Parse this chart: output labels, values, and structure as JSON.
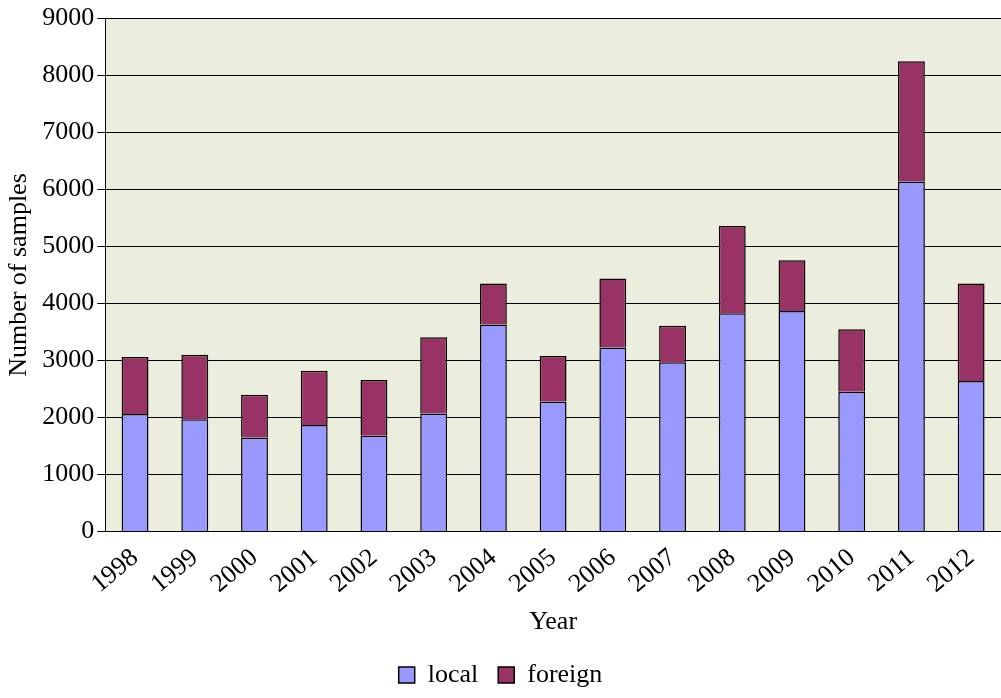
{
  "chart_data": {
    "type": "bar",
    "stacked": true,
    "xlabel": "Year",
    "ylabel": "Number of samples",
    "categories": [
      "1998",
      "1999",
      "2000",
      "2001",
      "2002",
      "2003",
      "2004",
      "2005",
      "2006",
      "2007",
      "2008",
      "2009",
      "2010",
      "2011",
      "2012"
    ],
    "series": [
      {
        "name": "local",
        "color": "#9999ff",
        "values": [
          2060,
          1970,
          1650,
          1870,
          1680,
          2070,
          3630,
          2280,
          3230,
          2970,
          3830,
          3870,
          2450,
          6140,
          2640
        ]
      },
      {
        "name": "foreign",
        "color": "#993366",
        "values": [
          1000,
          1130,
          750,
          950,
          980,
          1340,
          720,
          800,
          1210,
          640,
          1530,
          890,
          1100,
          2110,
          1710
        ]
      }
    ],
    "ylim": [
      0,
      9000
    ],
    "yticks": [
      0,
      1000,
      2000,
      3000,
      4000,
      5000,
      6000,
      7000,
      8000,
      9000
    ],
    "grid": "y",
    "legend": "bottom"
  }
}
